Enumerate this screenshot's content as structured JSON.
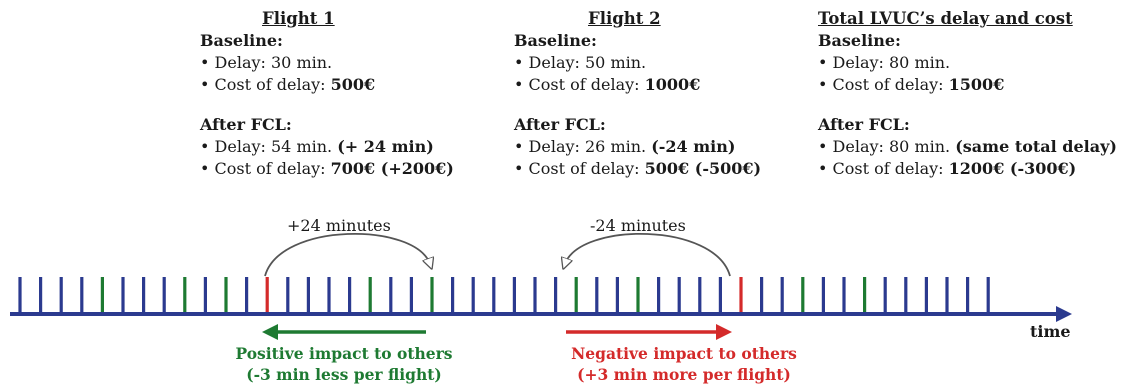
{
  "flight1": {
    "title": "Flight 1",
    "baseline_label": "Baseline:",
    "baseline_delay_prefix": "• Delay: 30 min.",
    "baseline_cost_prefix": "• Cost of delay: ",
    "baseline_cost_value": "500€",
    "after_label": "After FCL:",
    "after_delay_prefix": "• Delay: 54 min. ",
    "after_delay_value": "(+ 24 min)",
    "after_cost_prefix": "• Cost of delay: ",
    "after_cost_value": "700€ (+200€)"
  },
  "flight2": {
    "title": "Flight 2",
    "baseline_label": "Baseline:",
    "baseline_delay_prefix": "• Delay: 50 min.",
    "baseline_cost_prefix": "• Cost of delay: ",
    "baseline_cost_value": "1000€",
    "after_label": "After FCL:",
    "after_delay_prefix": "• Delay: 26 min. ",
    "after_delay_value": "(-24 min)",
    "after_cost_prefix": "• Cost of delay: ",
    "after_cost_value": "500€ (-500€)"
  },
  "total": {
    "title": "Total LVUC’s delay and cost",
    "baseline_label": "Baseline:",
    "baseline_delay_prefix": "• Delay: 80 min.",
    "baseline_cost_prefix": "• Cost of delay: ",
    "baseline_cost_value": "1500€",
    "after_label": "After FCL:",
    "after_delay_prefix": "• Delay: 80 min. ",
    "after_delay_value": "(same total delay)",
    "after_cost_prefix": "• Cost of delay: ",
    "after_cost_value": "1200€ (-300€)"
  },
  "arcs": {
    "left_label": "+24 minutes",
    "right_label": "-24 minutes"
  },
  "impact": {
    "positive_line1": "Positive impact to others",
    "positive_line2": "(-3 min less per flight)",
    "negative_line1": "Negative impact to others",
    "negative_line2": "(+3 min more per flight)"
  },
  "axis": {
    "label": "time"
  },
  "timeline": {
    "marks": [
      "b",
      "b",
      "b",
      "b",
      "g",
      "b",
      "b",
      "b",
      "g",
      "b",
      "g",
      "b",
      "r",
      "b",
      "b",
      "b",
      "b",
      "g",
      "b",
      "b",
      "g",
      "b",
      "b",
      "b",
      "b",
      "b",
      "b",
      "g",
      "b",
      "b",
      "g",
      "b",
      "b",
      "b",
      "b",
      "r",
      "b",
      "b",
      "g",
      "b",
      "b",
      "g",
      "b",
      "b",
      "b",
      "b",
      "b",
      "b"
    ]
  },
  "colors": {
    "blue": "#2b3a8f",
    "green": "#1e7a32",
    "red": "#d42a2a",
    "gray": "#555555"
  }
}
